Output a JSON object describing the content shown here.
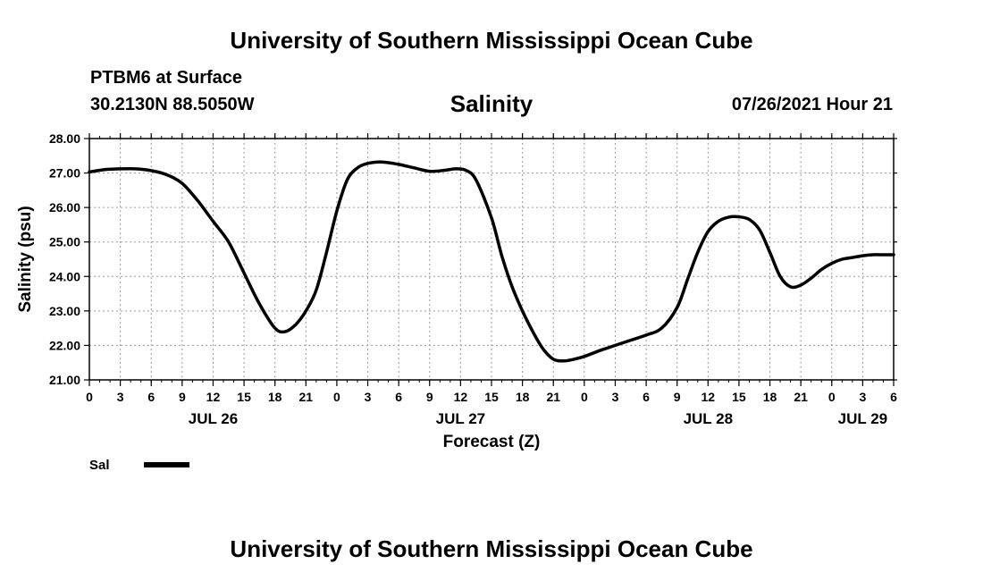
{
  "header": {
    "title_top": "University of Southern Mississippi Ocean Cube",
    "station": "PTBM6 at Surface",
    "coords": "30.2130N  88.5050W",
    "variable": "Salinity",
    "run_time": "07/26/2021 Hour 21"
  },
  "footer": {
    "title_bottom": "University of Southern Mississippi Ocean Cube"
  },
  "chart_data": {
    "type": "line",
    "title": "Salinity",
    "xlabel": "Forecast (Z)",
    "ylabel": "Salinity (psu)",
    "ylim": [
      21,
      28
    ],
    "xlim": [
      0,
      78
    ],
    "x_unit": "hours from JUL 26 00Z",
    "y_ticks": [
      "21.00",
      "22.00",
      "23.00",
      "24.00",
      "25.00",
      "26.00",
      "27.00",
      "28.00"
    ],
    "x_ticks": [
      "0",
      "3",
      "6",
      "9",
      "12",
      "15",
      "18",
      "21",
      "0",
      "3",
      "6",
      "9",
      "12",
      "15",
      "18",
      "21",
      "0",
      "3",
      "6",
      "9",
      "12",
      "15",
      "18",
      "21",
      "0",
      "3",
      "6"
    ],
    "day_labels": [
      {
        "hour": 12,
        "label": "JUL 26"
      },
      {
        "hour": 36,
        "label": "JUL 27"
      },
      {
        "hour": 60,
        "label": "JUL 28"
      },
      {
        "hour": 75,
        "label": "JUL 29"
      }
    ],
    "grid": true,
    "legend": [
      {
        "name": "Sal",
        "color": "#000000"
      }
    ],
    "series": [
      {
        "name": "Sal",
        "x": [
          0,
          1.5,
          3,
          4.5,
          6,
          7.5,
          9,
          10.5,
          12,
          13.5,
          15,
          16.5,
          18,
          19,
          20,
          21,
          22,
          23,
          24,
          25,
          26,
          27,
          28,
          29,
          30,
          31.5,
          33,
          34.5,
          35.5,
          36.5,
          37.5,
          39,
          40,
          41,
          42,
          43,
          44,
          45,
          46,
          47,
          48,
          49.5,
          51,
          52.5,
          54,
          55.5,
          57,
          58,
          59,
          60,
          61,
          62,
          63,
          64,
          65,
          66,
          67,
          68,
          69,
          70,
          71,
          72,
          73,
          74,
          75,
          76,
          77,
          78
        ],
        "y": [
          27.03,
          27.1,
          27.12,
          27.12,
          27.07,
          26.95,
          26.7,
          26.2,
          25.6,
          25.0,
          24.1,
          23.2,
          22.5,
          22.4,
          22.6,
          23.0,
          23.6,
          24.7,
          25.9,
          26.8,
          27.15,
          27.28,
          27.32,
          27.3,
          27.25,
          27.15,
          27.05,
          27.08,
          27.12,
          27.08,
          26.8,
          25.7,
          24.6,
          23.7,
          23.0,
          22.4,
          21.9,
          21.6,
          21.55,
          21.6,
          21.68,
          21.85,
          22.0,
          22.15,
          22.3,
          22.5,
          23.1,
          23.9,
          24.7,
          25.3,
          25.6,
          25.72,
          25.73,
          25.65,
          25.35,
          24.7,
          24.0,
          23.7,
          23.75,
          23.95,
          24.2,
          24.38,
          24.5,
          24.55,
          24.6,
          24.63,
          24.63,
          24.63
        ]
      }
    ]
  }
}
